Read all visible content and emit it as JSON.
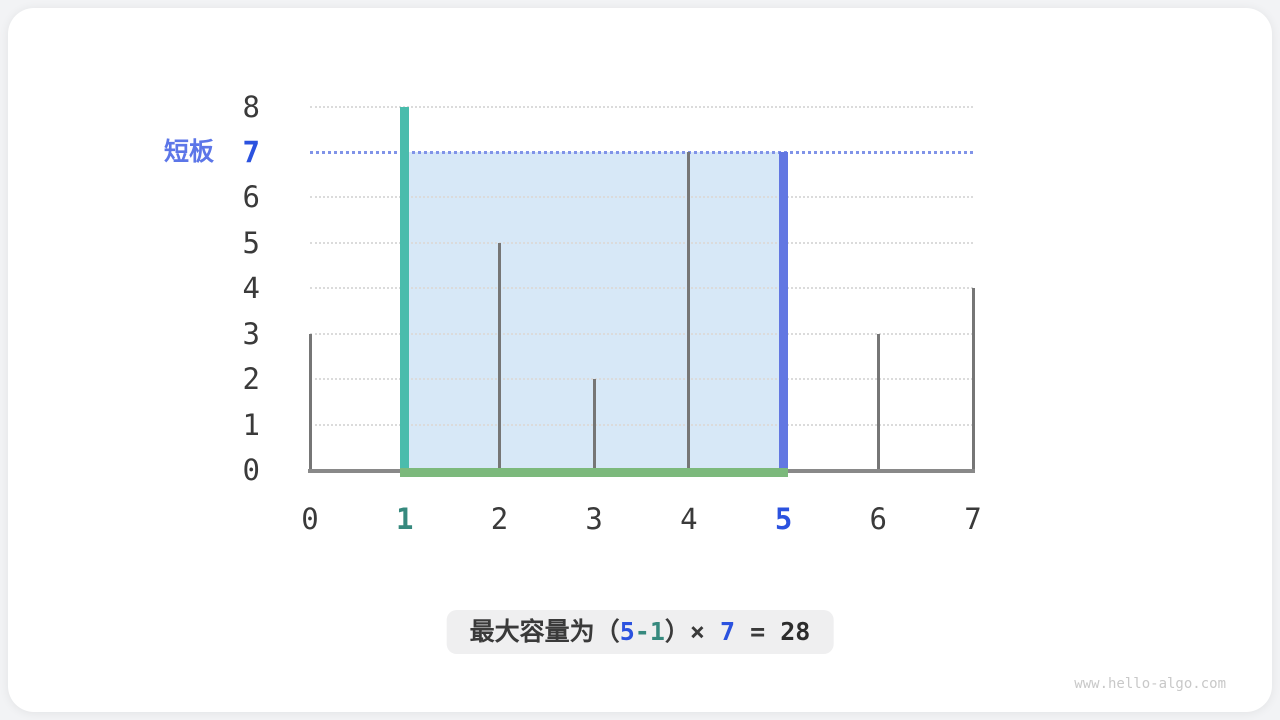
{
  "page": {
    "watermark": "www.hello-algo.com"
  },
  "chart_data": {
    "type": "bar",
    "title": "",
    "xlabel": "",
    "ylabel": "",
    "x": [
      0,
      1,
      2,
      3,
      4,
      5,
      6,
      7
    ],
    "heights": [
      3,
      8,
      5,
      2,
      7,
      7,
      3,
      4
    ],
    "x_ticks": [
      0,
      1,
      2,
      3,
      4,
      5,
      6,
      7
    ],
    "y_ticks": [
      0,
      1,
      2,
      3,
      4,
      5,
      6,
      7,
      8
    ],
    "xlim": [
      0,
      7
    ],
    "ylim": [
      0,
      8
    ],
    "grid": true,
    "grid_color": "#dbdbdb",
    "bar_color": "#767676",
    "axis_color": "#898989",
    "left_pointer": {
      "index": 1,
      "height": 8,
      "color": "#4abcac",
      "tick_color": "#36897e"
    },
    "right_pointer": {
      "index": 5,
      "height": 7,
      "color": "#6277e2",
      "tick_color": "#2b52df"
    },
    "water": {
      "from": 1,
      "to": 5,
      "height": 7,
      "area": 28,
      "fill": "#d7e8f7"
    },
    "shortboard": {
      "label": "短板",
      "value": 7,
      "label_color": "#5c76e8",
      "value_color": "#2b52df",
      "line_color": "#8093e8"
    },
    "base_bar": {
      "from": 1,
      "to": 5,
      "color": "#7cb97c"
    }
  },
  "caption": {
    "segments": [
      {
        "text": "最大容量为（",
        "color": "#3a3a3a",
        "num": false
      },
      {
        "text": "5",
        "color": "#2b52df",
        "num": true
      },
      {
        "text": "-",
        "color": "#36897e",
        "num": true
      },
      {
        "text": "1",
        "color": "#36897e",
        "num": true
      },
      {
        "text": "）× ",
        "color": "#3a3a3a",
        "num": false
      },
      {
        "text": "7",
        "color": "#2b52df",
        "num": true
      },
      {
        "text": " = ",
        "color": "#3a3a3a",
        "num": false
      },
      {
        "text": "28",
        "color": "#2c2c2c",
        "num": true
      }
    ]
  }
}
